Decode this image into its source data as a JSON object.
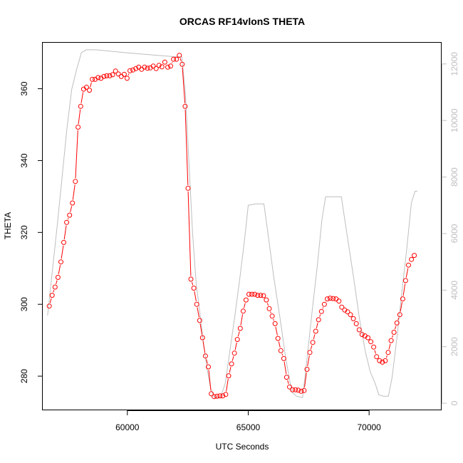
{
  "chart_data": {
    "type": "line",
    "title": "ORCAS RF14vlonS THETA",
    "xlabel": "UTC Seconds",
    "ylabel": "THETA",
    "xlim": [
      56500,
      73000
    ],
    "ylim": [
      270.5,
      372.8
    ],
    "y2lim": [
      -250,
      12750
    ],
    "x_ticks": [
      60000,
      65000,
      70000
    ],
    "x_tick_labels": [
      "60000",
      "65000",
      "70000"
    ],
    "y_ticks": [
      280,
      300,
      320,
      340,
      360
    ],
    "y_tick_labels": [
      "280",
      "300",
      "320",
      "340",
      "360"
    ],
    "y2_ticks": [
      0,
      2000,
      4000,
      6000,
      8000,
      10000,
      12000
    ],
    "y2_tick_labels": [
      "0",
      "2000",
      "4000",
      "6000",
      "8000",
      "10000",
      "12000"
    ],
    "grid": false,
    "colors": {
      "theta": "#ff0000",
      "altitude": "#bebebe"
    },
    "series": [
      {
        "values": [
          [
            56770,
            299.5
          ],
          [
            56890,
            302.5
          ],
          [
            57010,
            304.8
          ],
          [
            57130,
            307.5
          ],
          [
            57250,
            311.8
          ],
          [
            57370,
            317.2
          ],
          [
            57490,
            322.8
          ],
          [
            57610,
            324.8
          ],
          [
            57730,
            328.2
          ],
          [
            57850,
            334.2
          ],
          [
            57960,
            349.3
          ],
          [
            58070,
            355.1
          ],
          [
            58190,
            359.9
          ],
          [
            58310,
            360.4
          ],
          [
            58430,
            359.6
          ],
          [
            58550,
            362.6
          ],
          [
            58670,
            362.6
          ],
          [
            58790,
            363.1
          ],
          [
            58910,
            362.9
          ],
          [
            59030,
            363.4
          ],
          [
            59150,
            363.6
          ],
          [
            59270,
            363.6
          ],
          [
            59390,
            363.9
          ],
          [
            59510,
            364.9
          ],
          [
            59630,
            364.1
          ],
          [
            59750,
            363.4
          ],
          [
            59870,
            364.0
          ],
          [
            59990,
            362.9
          ],
          [
            60110,
            365.0
          ],
          [
            60230,
            365.2
          ],
          [
            60350,
            365.6
          ],
          [
            60470,
            366.0
          ],
          [
            60590,
            365.4
          ],
          [
            60710,
            366.0
          ],
          [
            60830,
            365.7
          ],
          [
            60950,
            365.8
          ],
          [
            61070,
            366.3
          ],
          [
            61190,
            365.6
          ],
          [
            61310,
            366.5
          ],
          [
            61430,
            366.1
          ],
          [
            61550,
            367.4
          ],
          [
            61670,
            366.0
          ],
          [
            61790,
            366.3
          ],
          [
            61910,
            368.2
          ],
          [
            62030,
            368.2
          ],
          [
            62150,
            369.3
          ],
          [
            62270,
            366.8
          ],
          [
            62390,
            355.1
          ],
          [
            62510,
            332.3
          ],
          [
            62630,
            307.0
          ],
          [
            62750,
            304.5
          ],
          [
            62870,
            300.0
          ],
          [
            62990,
            295.5
          ],
          [
            63110,
            290.7
          ],
          [
            63230,
            285.6
          ],
          [
            63350,
            282.6
          ],
          [
            63470,
            275.1
          ],
          [
            63590,
            274.3
          ],
          [
            63710,
            274.4
          ],
          [
            63830,
            274.5
          ],
          [
            63950,
            274.5
          ],
          [
            64070,
            274.9
          ],
          [
            64190,
            280.1
          ],
          [
            64310,
            283.4
          ],
          [
            64430,
            286.4
          ],
          [
            64550,
            290.2
          ],
          [
            64670,
            293.3
          ],
          [
            64790,
            298.1
          ],
          [
            64910,
            301.2
          ],
          [
            65030,
            302.8
          ],
          [
            65150,
            302.8
          ],
          [
            65270,
            302.8
          ],
          [
            65390,
            302.5
          ],
          [
            65510,
            302.5
          ],
          [
            65630,
            302.4
          ],
          [
            65750,
            301.2
          ],
          [
            65870,
            298.8
          ],
          [
            65990,
            296.7
          ],
          [
            66110,
            294.6
          ],
          [
            66230,
            290.5
          ],
          [
            66350,
            287.1
          ],
          [
            66470,
            284.9
          ],
          [
            66590,
            279.7
          ],
          [
            66710,
            277.0
          ],
          [
            66830,
            276.2
          ],
          [
            66950,
            276.2
          ],
          [
            67070,
            276.1
          ],
          [
            67190,
            275.8
          ],
          [
            67310,
            276.0
          ],
          [
            67430,
            281.9
          ],
          [
            67550,
            286.6
          ],
          [
            67670,
            289.4
          ],
          [
            67790,
            292.5
          ],
          [
            67910,
            295.7
          ],
          [
            68030,
            298.0
          ],
          [
            68150,
            300.0
          ],
          [
            68270,
            301.5
          ],
          [
            68390,
            301.7
          ],
          [
            68510,
            301.6
          ],
          [
            68630,
            301.5
          ],
          [
            68750,
            300.9
          ],
          [
            68870,
            299.2
          ],
          [
            68990,
            298.4
          ],
          [
            69110,
            297.9
          ],
          [
            69230,
            297.1
          ],
          [
            69350,
            296.0
          ],
          [
            69470,
            294.6
          ],
          [
            69590,
            292.9
          ],
          [
            69710,
            291.6
          ],
          [
            69830,
            291.2
          ],
          [
            69950,
            290.7
          ],
          [
            70070,
            289.6
          ],
          [
            70190,
            288.1
          ],
          [
            70310,
            285.4
          ],
          [
            70430,
            284.3
          ],
          [
            70550,
            283.9
          ],
          [
            70670,
            284.3
          ],
          [
            70790,
            286.6
          ],
          [
            70910,
            289.9
          ],
          [
            71030,
            292.2
          ],
          [
            71150,
            294.8
          ],
          [
            71270,
            297.1
          ],
          [
            71390,
            301.5
          ],
          [
            71510,
            306.6
          ],
          [
            71630,
            310.9
          ],
          [
            71750,
            312.5
          ],
          [
            71870,
            313.6
          ]
        ]
      },
      {
        "axis": "right",
        "values": [
          [
            56700,
            3100
          ],
          [
            56900,
            4700
          ],
          [
            57100,
            6300
          ],
          [
            57300,
            8000
          ],
          [
            57500,
            9700
          ],
          [
            57700,
            11100
          ],
          [
            57900,
            11800
          ],
          [
            58100,
            12400
          ],
          [
            58300,
            12500
          ],
          [
            58700,
            12500
          ],
          [
            59300,
            12450
          ],
          [
            59900,
            12400
          ],
          [
            60600,
            12350
          ],
          [
            61300,
            12300
          ],
          [
            62000,
            12250
          ],
          [
            62250,
            12250
          ],
          [
            62400,
            11000
          ],
          [
            62550,
            8500
          ],
          [
            62700,
            6000
          ],
          [
            62850,
            4200
          ],
          [
            63000,
            3200
          ],
          [
            63150,
            2100
          ],
          [
            63300,
            1200
          ],
          [
            63450,
            500
          ],
          [
            63600,
            200
          ],
          [
            63850,
            200
          ],
          [
            64050,
            700
          ],
          [
            64250,
            1900
          ],
          [
            64450,
            3100
          ],
          [
            64650,
            4400
          ],
          [
            64850,
            5800
          ],
          [
            65000,
            7000
          ],
          [
            65300,
            7050
          ],
          [
            65650,
            7050
          ],
          [
            65850,
            5800
          ],
          [
            66050,
            4500
          ],
          [
            66300,
            3100
          ],
          [
            66550,
            1600
          ],
          [
            66800,
            400
          ],
          [
            67000,
            250
          ],
          [
            67250,
            200
          ],
          [
            67450,
            1700
          ],
          [
            67650,
            3300
          ],
          [
            67850,
            4800
          ],
          [
            68050,
            6500
          ],
          [
            68200,
            7300
          ],
          [
            68500,
            7300
          ],
          [
            68850,
            7300
          ],
          [
            69100,
            5900
          ],
          [
            69350,
            4500
          ],
          [
            69600,
            3000
          ],
          [
            69850,
            1800
          ],
          [
            70050,
            1100
          ],
          [
            70250,
            700
          ],
          [
            70400,
            300
          ],
          [
            70600,
            250
          ],
          [
            70800,
            250
          ],
          [
            70950,
            900
          ],
          [
            71150,
            2300
          ],
          [
            71350,
            3900
          ],
          [
            71550,
            5400
          ],
          [
            71750,
            7100
          ],
          [
            71900,
            7500
          ],
          [
            72000,
            7500
          ]
        ]
      }
    ]
  }
}
